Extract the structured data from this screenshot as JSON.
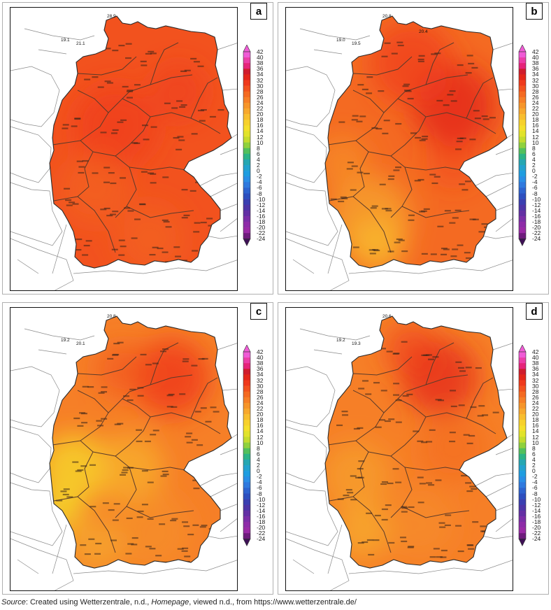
{
  "panels": [
    {
      "id": "a",
      "label": "a",
      "theme": "hot"
    },
    {
      "id": "b",
      "label": "b",
      "theme": "hot-north"
    },
    {
      "id": "c",
      "label": "c",
      "theme": "cool"
    },
    {
      "id": "d",
      "label": "d",
      "theme": "warm"
    }
  ],
  "legend": {
    "ticks": [
      "42",
      "40",
      "38",
      "36",
      "34",
      "32",
      "30",
      "28",
      "26",
      "24",
      "22",
      "20",
      "18",
      "16",
      "14",
      "12",
      "10",
      "8",
      "6",
      "4",
      "2",
      "0",
      "-2",
      "-4",
      "-6",
      "-8",
      "-10",
      "-12",
      "-14",
      "-16",
      "-18",
      "-20",
      "-22",
      "-24"
    ],
    "colors": {
      "42": "#f05bd6",
      "40": "#ec3ea7",
      "38": "#e5247a",
      "36": "#d01c2d",
      "34": "#e4261a",
      "32": "#ef3a1c",
      "30": "#f2521e",
      "28": "#f46a22",
      "26": "#f67f27",
      "24": "#f6952a",
      "22": "#f7a82e",
      "20": "#f8be2f",
      "18": "#f7d12c",
      "16": "#f4df2b",
      "14": "#e1e32b",
      "12": "#c4dc2e",
      "10": "#8fd13d",
      "8": "#52c05c",
      "6": "#2db486",
      "4": "#26a7b2",
      "2": "#23a2cf",
      "0": "#1f9de0",
      "-2": "#2a8ee6",
      "-4": "#2f79de",
      "-6": "#2d63cf",
      "-8": "#2d4fbf",
      "-10": "#3a3fb1",
      "-12": "#4d35a7",
      "-14": "#6330a4",
      "-16": "#7b2ea7",
      "-18": "#8e2ca8",
      "-20": "#9a2aa5",
      "-22": "#6e1c7c",
      "-24": "#3e1156"
    }
  },
  "source": {
    "prefix": "Source",
    "text_1": ": Created using Wetterzentrale, n.d., ",
    "italic": "Homepage",
    "text_2": ", viewed n.d., from https://www.wetterzentrale.de/"
  },
  "outside_labels": {
    "a": [
      "19.1",
      "21.1",
      "28.9"
    ],
    "b": [
      "19.0",
      "19.5",
      "20.8",
      "20.4"
    ],
    "c": [
      "19.2",
      "20.1",
      "20.8"
    ],
    "d": [
      "19.2",
      "19.3",
      "20.6"
    ]
  }
}
